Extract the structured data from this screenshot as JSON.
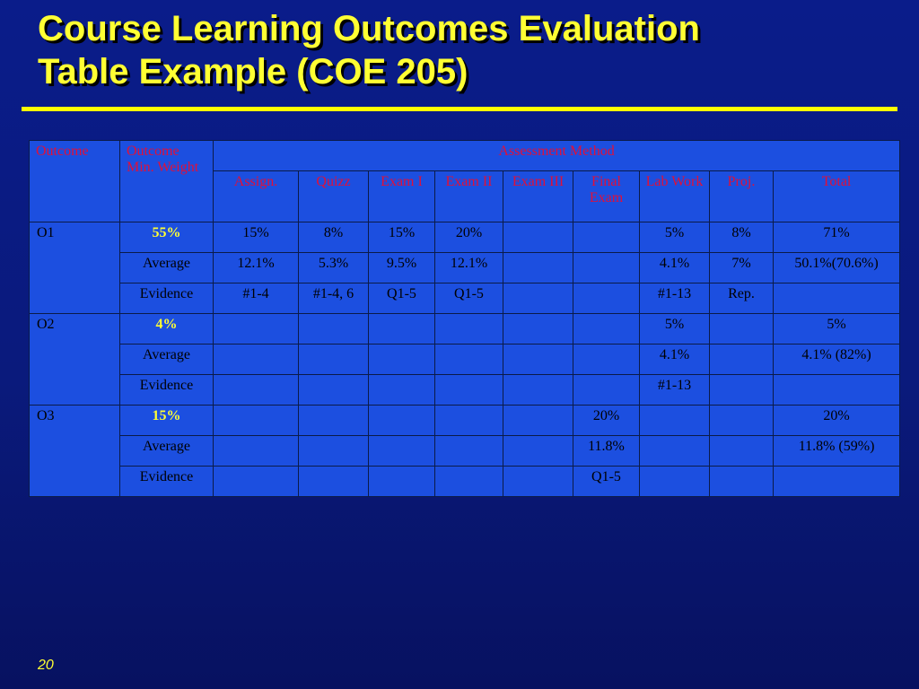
{
  "slide": {
    "title_line1": "Course Learning Outcomes Evaluation",
    "title_line2": "Table Example (COE 205)",
    "page_number": "20"
  },
  "table": {
    "headers": {
      "outcome": "Outcome",
      "min_weight": "Outcome Min. Weight",
      "assessment_method": "Assessment Method",
      "methods": [
        "Assign.",
        "Quizz",
        "Exam I",
        "Exam II",
        "Exam III",
        "Final Exam",
        "Lab Work",
        "Proj.",
        "Total"
      ]
    },
    "outcomes": [
      {
        "name": "O1",
        "weight": "55%",
        "weight_cells": [
          "15%",
          "8%",
          "15%",
          "20%",
          "",
          "",
          "5%",
          "8%",
          "71%"
        ],
        "average_label": "Average",
        "average_cells": [
          "12.1%",
          "5.3%",
          "9.5%",
          "12.1%",
          "",
          "",
          "4.1%",
          "7%",
          "50.1%(70.6%)"
        ],
        "evidence_label": "Evidence",
        "evidence_cells": [
          "#1-4",
          "#1-4, 6",
          "Q1-5",
          "Q1-5",
          "",
          "",
          "#1-13",
          "Rep.",
          ""
        ]
      },
      {
        "name": "O2",
        "weight": "4%",
        "weight_cells": [
          "",
          "",
          "",
          "",
          "",
          "",
          "5%",
          "",
          "5%"
        ],
        "average_label": "Average",
        "average_cells": [
          "",
          "",
          "",
          "",
          "",
          "",
          "4.1%",
          "",
          "4.1% (82%)"
        ],
        "evidence_label": "Evidence",
        "evidence_cells": [
          "",
          "",
          "",
          "",
          "",
          "",
          "#1-13",
          "",
          ""
        ]
      },
      {
        "name": "O3",
        "weight": "15%",
        "weight_cells": [
          "",
          "",
          "",
          "",
          "",
          "20%",
          "",
          "",
          "20%"
        ],
        "average_label": "Average",
        "average_cells": [
          "",
          "",
          "",
          "",
          "",
          "11.8%",
          "",
          "",
          "11.8% (59%)"
        ],
        "evidence_label": "Evidence",
        "evidence_cells": [
          "",
          "",
          "",
          "",
          "",
          "Q1-5",
          "",
          "",
          ""
        ]
      }
    ]
  }
}
